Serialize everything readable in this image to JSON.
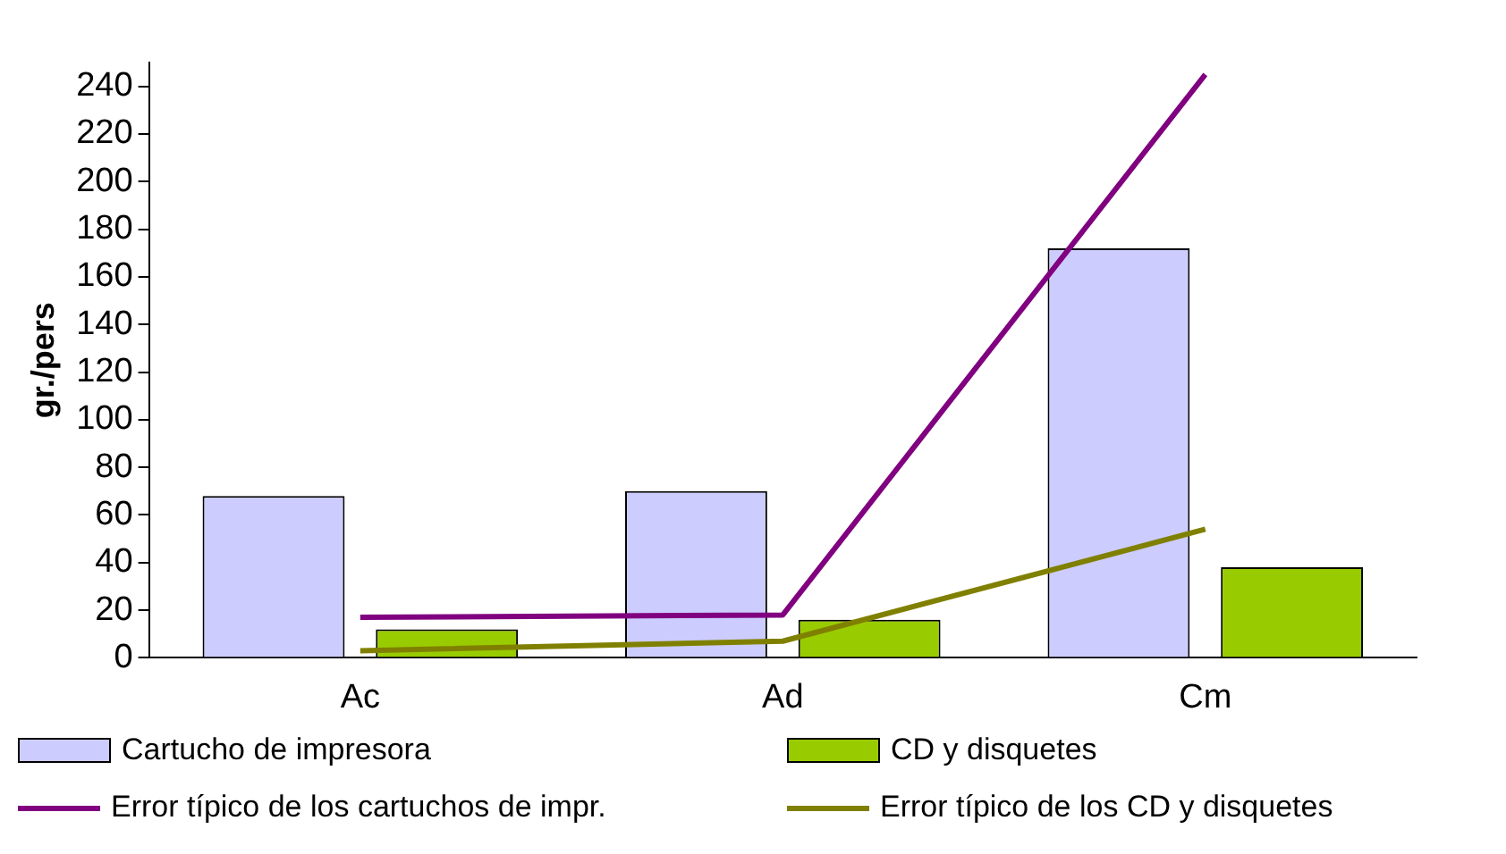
{
  "chart_data": {
    "type": "bar",
    "ylabel": "gr./pers",
    "categories": [
      "Ac",
      "Ad",
      "Cm"
    ],
    "series": [
      {
        "name": "Cartucho de impresora",
        "color": "#ccccff",
        "values": [
          68,
          70,
          172
        ]
      },
      {
        "name": "CD y disquetes",
        "color": "#99cc00",
        "values": [
          12,
          16,
          38
        ]
      },
      {
        "name": "Error típico de los cartuchos de impr.",
        "type": "line",
        "color": "#800080",
        "values": [
          17,
          18,
          245
        ]
      },
      {
        "name": "Error típico de los CD y disquetes",
        "type": "line",
        "color": "#808000",
        "values": [
          3,
          7,
          54
        ]
      }
    ],
    "ylim": [
      0,
      250
    ],
    "yticks": [
      0,
      20,
      40,
      60,
      80,
      100,
      120,
      140,
      160,
      180,
      200,
      220,
      240
    ],
    "grid": false,
    "legend": "bottom",
    "marker": "none"
  }
}
